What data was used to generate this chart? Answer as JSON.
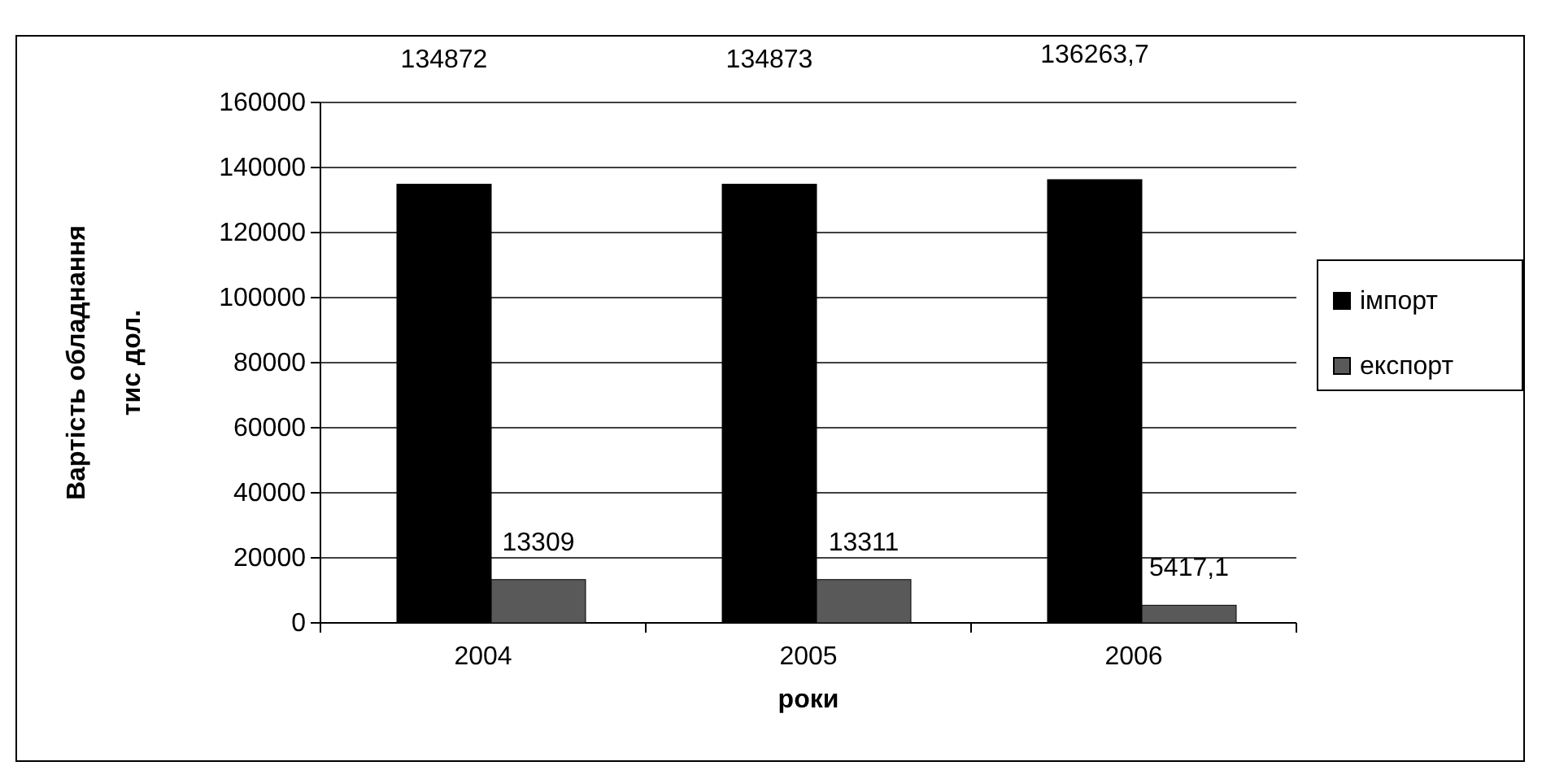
{
  "chart_data": {
    "type": "bar",
    "xlabel": "роки",
    "ylabel": "Вартість обладнання\nтис дол.",
    "categories": [
      "2004",
      "2005",
      "2006"
    ],
    "series": [
      {
        "name": "імпорт",
        "color": "#000000",
        "values": [
          134872,
          134873,
          136263.7
        ],
        "value_labels": [
          "134872",
          "134873",
          "136263,7"
        ]
      },
      {
        "name": "експорт",
        "color": "#595959",
        "values": [
          13309,
          13311,
          5417.1
        ],
        "value_labels": [
          "13309",
          "13311",
          "5417,1"
        ]
      }
    ],
    "ylim": [
      0,
      160000
    ],
    "yticks": [
      0,
      20000,
      40000,
      60000,
      80000,
      100000,
      120000,
      140000,
      160000
    ],
    "grid": "y",
    "legend": "right"
  }
}
